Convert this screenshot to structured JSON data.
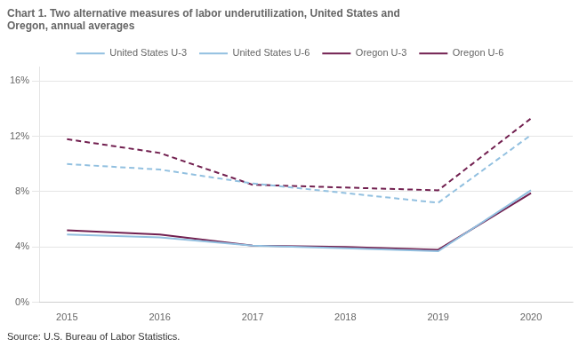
{
  "chart_data": {
    "type": "line",
    "title": [
      "Chart 1. Two alternative measures of labor underutilization, United States and",
      "Oregon, annual averages"
    ],
    "source": "Source: U.S. Bureau of Labor Statistics.",
    "x": [
      2015,
      2016,
      2017,
      2018,
      2019,
      2020
    ],
    "xlim": [
      2014.7,
      2020.45
    ],
    "xticks": [
      2015,
      2016,
      2017,
      2018,
      2019,
      2020
    ],
    "ylim": [
      0,
      17
    ],
    "yticks": [
      {
        "value": 0,
        "label": "0%"
      },
      {
        "value": 4,
        "label": "4%"
      },
      {
        "value": 8,
        "label": "8%"
      },
      {
        "value": 12,
        "label": "12%"
      },
      {
        "value": 16,
        "label": "16%"
      }
    ],
    "grid": true,
    "legend": "top",
    "series": [
      {
        "name": "United States U-3",
        "color": "#92c0e0",
        "line_style": "solid",
        "values": [
          4.9,
          4.7,
          4.1,
          3.9,
          3.7,
          8.1
        ]
      },
      {
        "name": "United States U-6",
        "color": "#92c0e0",
        "line_style": "dashed",
        "values": [
          10.0,
          9.6,
          8.6,
          7.9,
          7.2,
          12.1
        ]
      },
      {
        "name": "Oregon U-3",
        "color": "#722050",
        "line_style": "solid",
        "values": [
          5.2,
          4.9,
          4.1,
          4.0,
          3.8,
          7.9
        ]
      },
      {
        "name": "Oregon U-6",
        "color": "#722050",
        "line_style": "dashed",
        "values": [
          11.8,
          10.8,
          8.5,
          8.3,
          8.1,
          13.3
        ]
      }
    ]
  }
}
